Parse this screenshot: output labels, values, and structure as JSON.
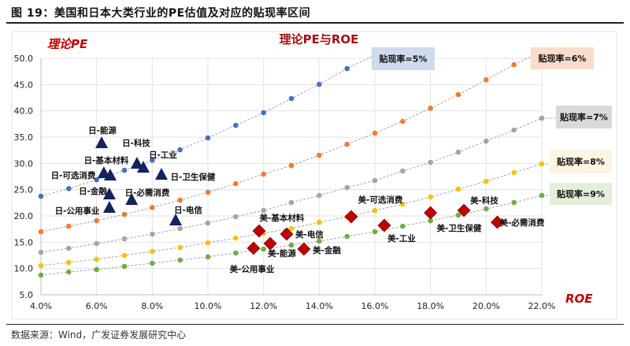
{
  "figure_title": "图 19：美国和日本大类行业的PE估值及对应的贴现率区间",
  "source": "数据来源：Wind，广发证券发展研究中心",
  "chart_data": {
    "type": "scatter",
    "title": "理论PE与ROE",
    "ylabel": "理论PE",
    "xlabel": "ROE",
    "xlim": [
      4,
      22
    ],
    "ylim": [
      5,
      50
    ],
    "xticks": [
      "4.0%",
      "6.0%",
      "8.0%",
      "10.0%",
      "12.0%",
      "14.0%",
      "16.0%",
      "18.0%",
      "20.0%",
      "22.0%"
    ],
    "yticks": [
      "5.0",
      "10.0",
      "15.0",
      "20.0",
      "25.0",
      "30.0",
      "35.0",
      "40.0",
      "45.0",
      "50.0"
    ],
    "grid": true,
    "curves": [
      {
        "name": "贴现率=5%",
        "color": "#4472c4",
        "box": "#cfdaee",
        "roe": [
          4,
          5,
          6,
          7,
          8,
          9,
          10,
          11,
          12,
          13,
          14,
          15
        ],
        "pe": [
          23.75,
          25.2,
          26.9,
          28.7,
          30.6,
          32.6,
          34.85,
          37.25,
          39.65,
          42.35,
          45.05,
          48.05
        ]
      },
      {
        "name": "贴现率=6%",
        "color": "#ed7d31",
        "box": "#f9dccb",
        "roe": [
          4,
          5,
          6,
          7,
          8,
          9,
          10,
          11,
          12,
          13,
          14,
          15,
          16,
          17,
          18,
          19,
          20,
          21
        ],
        "pe": [
          17.0,
          18.05,
          19.1,
          20.3,
          21.6,
          23.0,
          24.5,
          26.15,
          27.95,
          29.6,
          31.55,
          33.65,
          35.75,
          38.0,
          40.5,
          43.1,
          45.9,
          48.8
        ]
      },
      {
        "name": "贴现率=7%",
        "color": "#a5a5a5",
        "box": "#d9d9d9",
        "roe": [
          4,
          5,
          6,
          7,
          8,
          9,
          10,
          11,
          12,
          13,
          14,
          15,
          16,
          17,
          18,
          19,
          20,
          21,
          22
        ],
        "pe": [
          13.1,
          13.85,
          14.75,
          15.65,
          16.55,
          17.6,
          18.65,
          19.85,
          21.05,
          22.55,
          23.9,
          25.4,
          26.75,
          28.55,
          30.2,
          32.15,
          34.25,
          36.35,
          38.6
        ]
      },
      {
        "name": "贴现率=8%",
        "color": "#ffc000",
        "box": "#fdf5e1",
        "roe": [
          4,
          5,
          6,
          7,
          8,
          9,
          10,
          11,
          12,
          13,
          14,
          15,
          16,
          17,
          18,
          19,
          20,
          21,
          22
        ],
        "pe": [
          10.55,
          11.15,
          11.75,
          12.5,
          13.25,
          14.0,
          14.9,
          15.8,
          16.7,
          17.6,
          18.8,
          19.85,
          21.05,
          22.25,
          23.6,
          25.1,
          26.6,
          28.25,
          29.9
        ]
      },
      {
        "name": "贴现率=9%",
        "color": "#70ad47",
        "box": "#e2efd9",
        "roe": [
          4,
          5,
          6,
          7,
          8,
          9,
          10,
          11,
          12,
          13,
          14,
          15,
          16,
          17,
          18,
          19,
          20,
          21,
          22
        ],
        "pe": [
          8.75,
          9.35,
          9.8,
          10.4,
          11.0,
          11.6,
          12.2,
          12.95,
          13.7,
          14.45,
          15.2,
          16.1,
          17.0,
          18.05,
          19.1,
          20.15,
          21.35,
          22.55,
          23.9
        ]
      }
    ],
    "japan": {
      "color": "#12245e",
      "points": [
        {
          "name": "日-能源",
          "roe": 6.18,
          "pe": 33.8
        },
        {
          "name": "日-科技",
          "roe": 7.45,
          "pe": 29.9
        },
        {
          "name": "日-工业",
          "roe": 7.68,
          "pe": 29.15
        },
        {
          "name": "日-基本材料",
          "roe": 6.26,
          "pe": 28.1
        },
        {
          "name": "日-可选消费",
          "roe": 6.49,
          "pe": 27.65
        },
        {
          "name": "日-卫生保健",
          "roe": 8.33,
          "pe": 27.8
        },
        {
          "name": "日-金融",
          "roe": 6.46,
          "pe": 24.05
        },
        {
          "name": "日-必需消费",
          "roe": 7.26,
          "pe": 23.0
        },
        {
          "name": "日-公用事业",
          "roe": 6.46,
          "pe": 21.5
        },
        {
          "name": "日-电信",
          "roe": 8.84,
          "pe": 19.1
        }
      ]
    },
    "us": {
      "color": "#c00000",
      "points": [
        {
          "name": "美-基本材料",
          "roe": 11.84,
          "pe": 17.15
        },
        {
          "name": "美-能源",
          "roe": 12.24,
          "pe": 14.75
        },
        {
          "name": "美-公用事业",
          "roe": 11.64,
          "pe": 13.85
        },
        {
          "name": "美-电信",
          "roe": 12.83,
          "pe": 16.55
        },
        {
          "name": "美-金融",
          "roe": 13.45,
          "pe": 13.7
        },
        {
          "name": "美-可选消费",
          "roe": 15.15,
          "pe": 19.85
        },
        {
          "name": "美-工业",
          "roe": 16.34,
          "pe": 18.2
        },
        {
          "name": "美-卫生保健",
          "roe": 18.0,
          "pe": 20.6
        },
        {
          "name": "美-科技",
          "roe": 19.2,
          "pe": 21.05
        },
        {
          "name": "美-必需消费",
          "roe": 20.4,
          "pe": 18.8
        }
      ]
    }
  }
}
